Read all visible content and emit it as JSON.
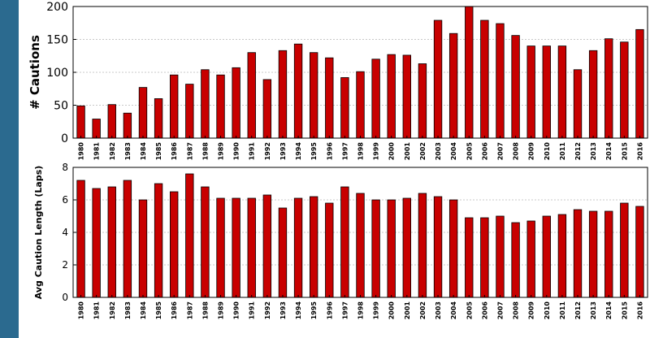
{
  "colors": {
    "side_band": "#2b6a8f",
    "bar_fill": "#c80000",
    "bar_edge": "#000000",
    "grid": "#c8c8c8"
  },
  "chart_data": [
    {
      "type": "bar",
      "panel": "top",
      "ylabel": "# Cautions",
      "xlabel": "",
      "ylim": [
        0,
        200
      ],
      "yticks": [
        0,
        50,
        100,
        150,
        200
      ],
      "grid": true,
      "categories": [
        "1980",
        "1981",
        "1982",
        "1983",
        "1984",
        "1985",
        "1986",
        "1987",
        "1988",
        "1989",
        "1990",
        "1991",
        "1992",
        "1993",
        "1994",
        "1995",
        "1996",
        "1997",
        "1998",
        "1999",
        "2000",
        "2001",
        "2002",
        "2003",
        "2004",
        "2005",
        "2006",
        "2007",
        "2008",
        "2009",
        "2010",
        "2011",
        "2012",
        "2013",
        "2014",
        "2015",
        "2016"
      ],
      "values": [
        49,
        29,
        51,
        38,
        77,
        60,
        96,
        82,
        104,
        96,
        107,
        130,
        89,
        133,
        143,
        130,
        122,
        92,
        101,
        120,
        127,
        126,
        113,
        179,
        159,
        200,
        179,
        174,
        156,
        140,
        140,
        140,
        104,
        133,
        151,
        146,
        165
      ]
    },
    {
      "type": "bar",
      "panel": "bottom",
      "ylabel": "Avg Caution Length (Laps)",
      "xlabel": "",
      "ylim": [
        0,
        8
      ],
      "yticks": [
        0,
        2,
        4,
        6,
        8
      ],
      "grid": true,
      "categories": [
        "1980",
        "1981",
        "1982",
        "1983",
        "1984",
        "1985",
        "1986",
        "1987",
        "1988",
        "1989",
        "1990",
        "1991",
        "1992",
        "1993",
        "1994",
        "1995",
        "1996",
        "1997",
        "1998",
        "1999",
        "2000",
        "2001",
        "2002",
        "2003",
        "2004",
        "2005",
        "2006",
        "2007",
        "2008",
        "2009",
        "2010",
        "2011",
        "2012",
        "2013",
        "2014",
        "2015",
        "2016"
      ],
      "values": [
        7.2,
        6.7,
        6.8,
        7.2,
        6.0,
        7.0,
        6.5,
        7.6,
        6.8,
        6.1,
        6.1,
        6.1,
        6.3,
        5.5,
        6.1,
        6.2,
        5.8,
        6.8,
        6.4,
        6.0,
        6.0,
        6.1,
        6.4,
        6.2,
        6.0,
        4.9,
        4.9,
        5.0,
        4.6,
        4.7,
        5.0,
        5.1,
        5.4,
        5.3,
        5.3,
        5.8,
        5.6
      ]
    }
  ]
}
